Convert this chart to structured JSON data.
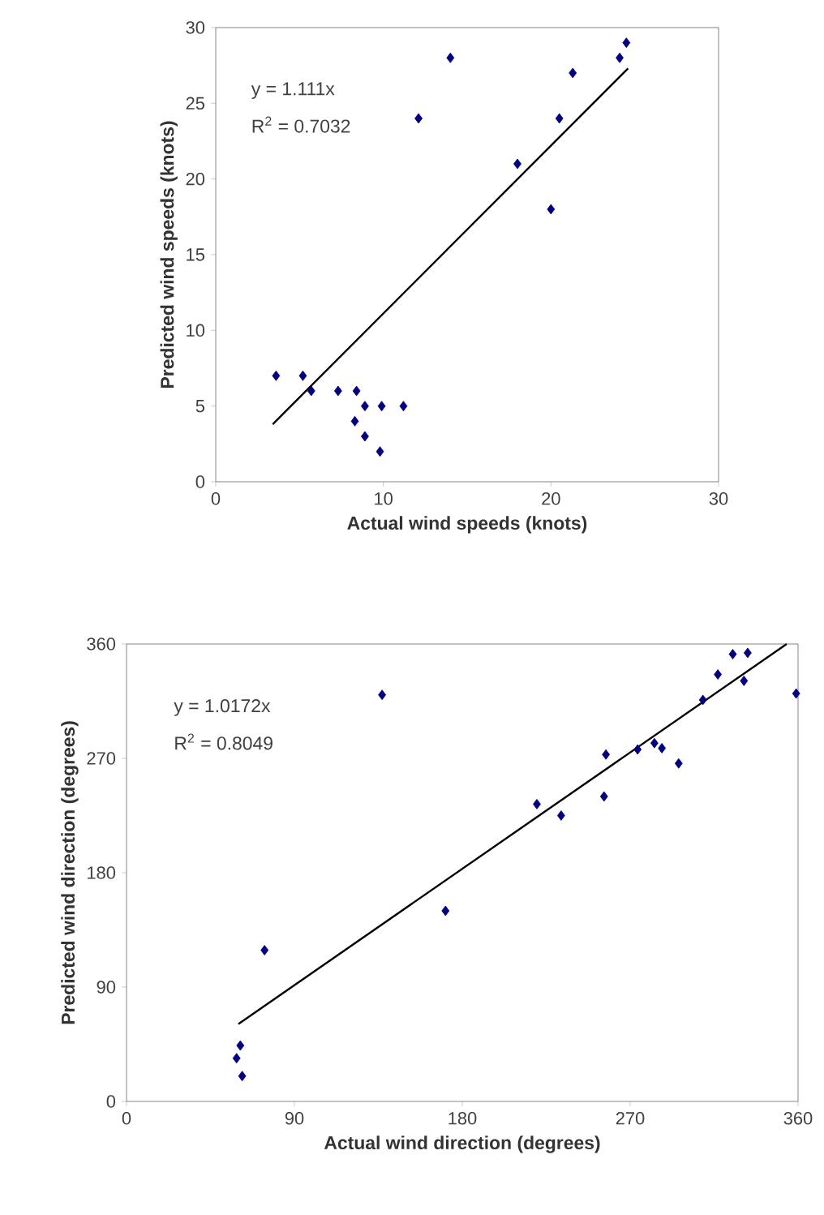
{
  "chart_data": [
    {
      "type": "scatter",
      "xlabel": "Actual wind speeds (knots)",
      "ylabel": "Predicted wind speeds (knots)",
      "xlim": [
        0,
        30
      ],
      "ylim": [
        0,
        30
      ],
      "xticks": [
        0,
        10,
        20,
        30
      ],
      "yticks": [
        0,
        5,
        10,
        15,
        20,
        25,
        30
      ],
      "marker": "diamond",
      "annotations": [
        "y = 1.111x",
        "R$^{2}$ = 0.7032"
      ],
      "series": [
        {
          "color": "#000080",
          "x": [
            3.6,
            5.2,
            5.7,
            7.3,
            8.4,
            8.3,
            8.9,
            8.9,
            9.9,
            9.8,
            11.2,
            12.1,
            14.0,
            18.0,
            20.5,
            20.0,
            21.3,
            24.1,
            24.5
          ],
          "values": [
            7,
            7,
            6,
            6,
            6,
            4,
            5,
            3,
            5,
            2,
            5,
            24,
            28,
            21,
            24,
            18,
            27,
            28,
            29
          ]
        },
        {
          "type": "line",
          "color": "#000000",
          "marker": "none",
          "x": [
            3.4,
            24.6
          ],
          "values": [
            3.8,
            27.3
          ]
        }
      ]
    },
    {
      "type": "scatter",
      "xlabel": "Actual wind direction (degrees)",
      "ylabel": "Predicted wind direction (degrees)",
      "xlim": [
        0,
        360
      ],
      "ylim": [
        0,
        360
      ],
      "xticks": [
        0,
        90,
        180,
        270,
        360
      ],
      "yticks": [
        0,
        90,
        180,
        270,
        360
      ],
      "marker": "diamond",
      "annotations": [
        "y = 1.0172x",
        "R$^{2}$ = 0.8049"
      ],
      "series": [
        {
          "color": "#000080",
          "x": [
            61,
            59,
            62,
            74,
            137,
            171,
            220,
            233,
            256,
            257,
            274,
            283,
            287,
            296,
            309,
            317,
            325,
            331,
            333,
            359
          ],
          "values": [
            44,
            34,
            20,
            119,
            320,
            150,
            234,
            225,
            240,
            273,
            277,
            282,
            278,
            266,
            316,
            336,
            352,
            331,
            353,
            321
          ]
        },
        {
          "type": "line",
          "color": "#000000",
          "marker": "none",
          "x": [
            60,
            353.9
          ],
          "values": [
            61,
            360
          ]
        }
      ]
    }
  ]
}
